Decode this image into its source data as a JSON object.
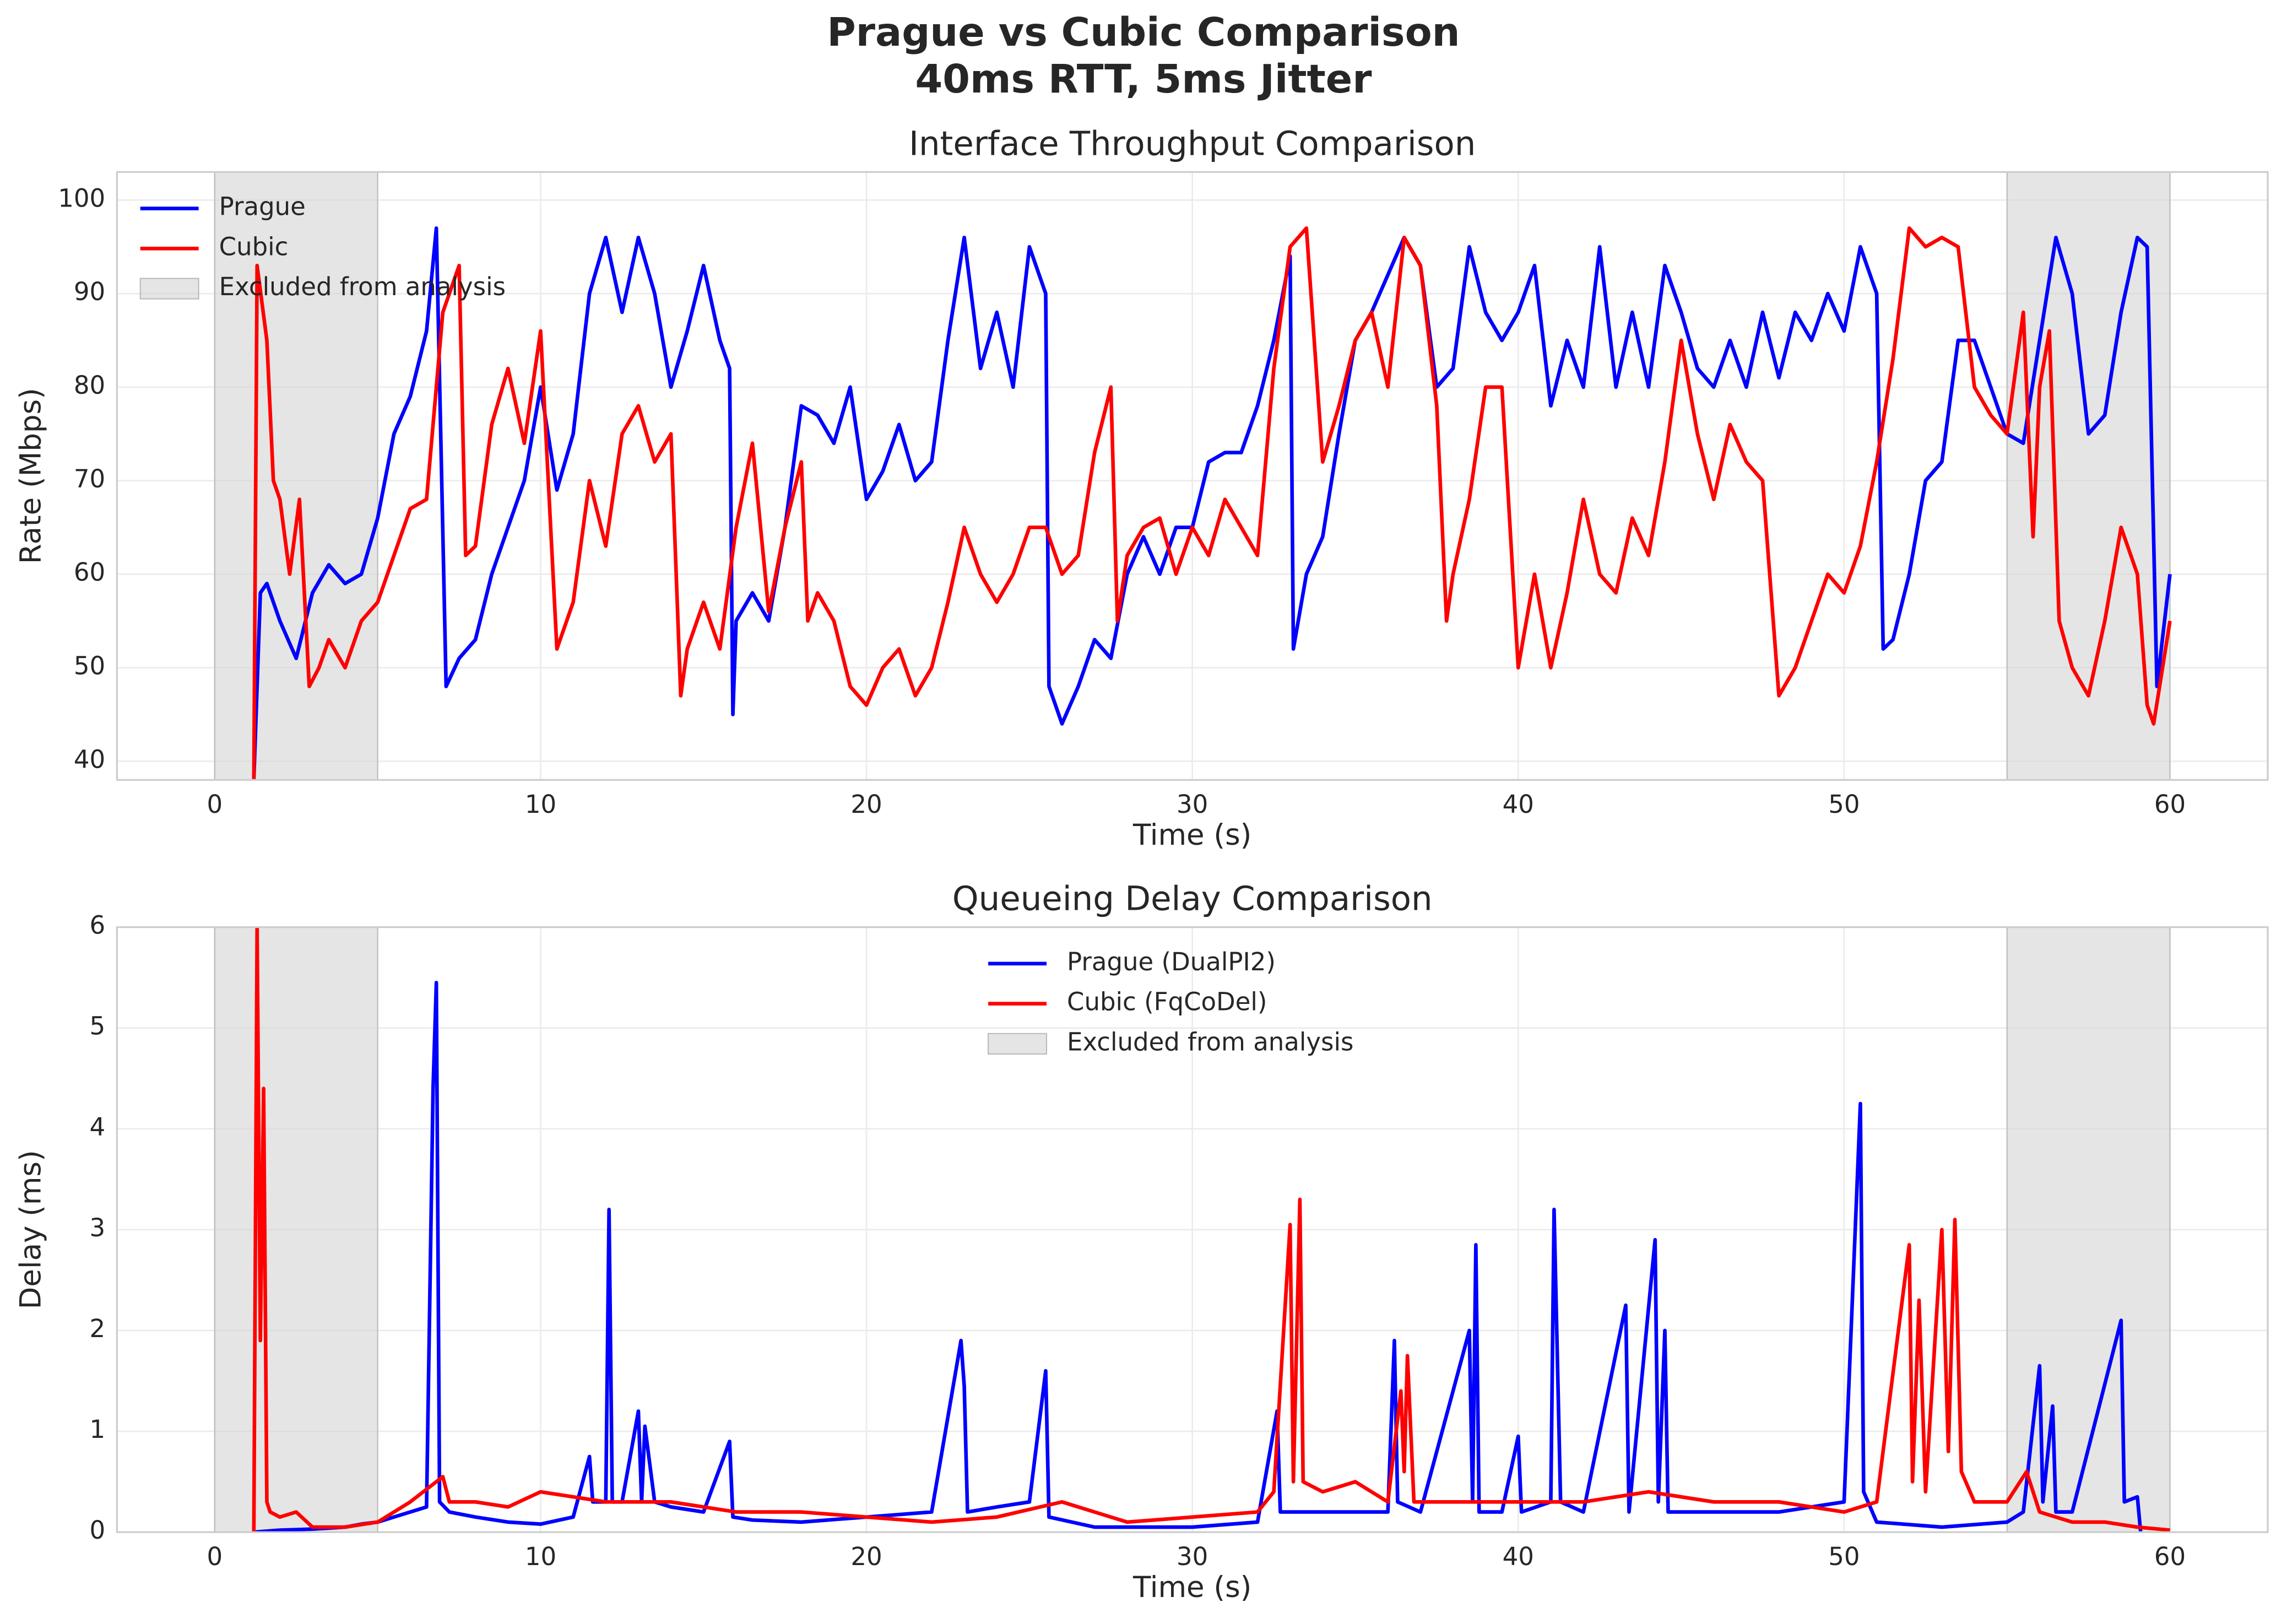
{
  "title": "Prague vs Cubic Comparison",
  "subtitle": "40ms RTT, 5ms Jitter",
  "chart_data": [
    {
      "type": "line",
      "title": "Interface Throughput Comparison",
      "x_label": "Time (s)",
      "y_label": "Rate (Mbps)",
      "xlim": [
        -3,
        63
      ],
      "ylim": [
        38,
        103
      ],
      "xticks": [
        0,
        10,
        20,
        30,
        40,
        50,
        60
      ],
      "yticks": [
        40,
        50,
        60,
        70,
        80,
        90,
        100
      ],
      "grid": true,
      "legend": "upper left",
      "shaded": {
        "name": "Excluded from analysis",
        "color": "#d3d3d3",
        "ranges": [
          [
            0,
            5
          ],
          [
            55,
            60
          ]
        ]
      },
      "series": [
        {
          "name": "Prague",
          "color": "#0000ff",
          "x": [
            1.2,
            1.4,
            1.6,
            2,
            2.5,
            3,
            3.5,
            4,
            4.5,
            5,
            5.5,
            6,
            6.5,
            6.8,
            7.1,
            7.5,
            8,
            8.5,
            9,
            9.5,
            10,
            10.5,
            11,
            11.5,
            12,
            12.5,
            13,
            13.5,
            14,
            14.5,
            15,
            15.5,
            15.8,
            15.9,
            16,
            16.5,
            17,
            17.5,
            18,
            18.5,
            19,
            19.5,
            20,
            20.5,
            21,
            21.5,
            22,
            22.5,
            23,
            23.5,
            24,
            24.5,
            25,
            25.5,
            25.6,
            26,
            26.5,
            27,
            27.5,
            28,
            28.5,
            29,
            29.5,
            30,
            30.5,
            31,
            31.5,
            32,
            32.5,
            33,
            33.1,
            33.5,
            34,
            34.5,
            35,
            35.5,
            36,
            36.5,
            37,
            37.5,
            38,
            38.5,
            39,
            39.5,
            40,
            40.5,
            41,
            41.5,
            42,
            42.5,
            43,
            43.5,
            44,
            44.5,
            45,
            45.5,
            46,
            46.5,
            47,
            47.5,
            48,
            48.5,
            49,
            49.5,
            50,
            50.5,
            51,
            51.2,
            51.5,
            52,
            52.5,
            53,
            53.5,
            54,
            54.5,
            55,
            55.5,
            56,
            56.5,
            57,
            57.5,
            58,
            58.5,
            59,
            59.3,
            59.6,
            60
          ],
          "values": [
            38,
            58,
            59,
            55,
            51,
            58,
            61,
            59,
            60,
            66,
            75,
            79,
            86,
            97,
            48,
            51,
            53,
            60,
            65,
            70,
            80,
            69,
            75,
            90,
            96,
            88,
            96,
            90,
            80,
            86,
            93,
            85,
            82,
            45,
            55,
            58,
            55,
            65,
            78,
            77,
            74,
            80,
            68,
            71,
            76,
            70,
            72,
            85,
            96,
            82,
            88,
            80,
            95,
            90,
            48,
            44,
            48,
            53,
            51,
            60,
            64,
            60,
            65,
            65,
            72,
            73,
            73,
            78,
            85,
            94,
            52,
            60,
            64,
            75,
            85,
            88,
            92,
            96,
            93,
            80,
            82,
            95,
            88,
            85,
            88,
            93,
            78,
            85,
            80,
            95,
            80,
            88,
            80,
            93,
            88,
            82,
            80,
            85,
            80,
            88,
            81,
            88,
            85,
            90,
            86,
            95,
            90,
            52,
            53,
            60,
            70,
            72,
            85,
            85,
            80,
            75,
            74,
            85,
            96,
            90,
            75,
            77,
            88,
            96,
            95,
            48,
            60
          ]
        },
        {
          "name": "Cubic",
          "color": "#ff0000",
          "x": [
            1.2,
            1.3,
            1.6,
            1.8,
            2,
            2.3,
            2.6,
            2.9,
            3.2,
            3.5,
            4,
            4.5,
            5,
            5.5,
            6,
            6.5,
            7,
            7.5,
            7.7,
            8,
            8.5,
            9,
            9.5,
            10,
            10.5,
            11,
            11.5,
            12,
            12.5,
            13,
            13.5,
            14,
            14.3,
            14.5,
            15,
            15.5,
            16,
            16.5,
            17,
            17.5,
            18,
            18.2,
            18.5,
            19,
            19.5,
            20,
            20.5,
            21,
            21.5,
            22,
            22.5,
            23,
            23.5,
            24,
            24.5,
            25,
            25.5,
            26,
            26.5,
            27,
            27.5,
            27.7,
            28,
            28.5,
            29,
            29.5,
            30,
            30.5,
            31,
            31.5,
            32,
            32.5,
            33,
            33.5,
            34,
            34.5,
            35,
            35.5,
            36,
            36.5,
            37,
            37.5,
            37.8,
            38,
            38.5,
            39,
            39.5,
            40,
            40.5,
            41,
            41.5,
            42,
            42.5,
            43,
            43.5,
            44,
            44.5,
            45,
            45.5,
            46,
            46.5,
            47,
            47.5,
            48,
            48.5,
            49,
            49.5,
            50,
            50.5,
            51,
            51.5,
            52,
            52.5,
            53,
            53.5,
            54,
            54.5,
            55,
            55.5,
            55.8,
            56,
            56.3,
            56.6,
            57,
            57.5,
            58,
            58.5,
            59,
            59.3,
            59.5,
            60
          ],
          "values": [
            38,
            93,
            85,
            70,
            68,
            60,
            68,
            48,
            50,
            53,
            50,
            55,
            57,
            62,
            67,
            68,
            88,
            93,
            62,
            63,
            76,
            82,
            74,
            86,
            52,
            57,
            70,
            63,
            75,
            78,
            72,
            75,
            47,
            52,
            57,
            52,
            65,
            74,
            56,
            65,
            72,
            55,
            58,
            55,
            48,
            46,
            50,
            52,
            47,
            50,
            57,
            65,
            60,
            57,
            60,
            65,
            65,
            60,
            62,
            73,
            80,
            55,
            62,
            65,
            66,
            60,
            65,
            62,
            68,
            65,
            62,
            82,
            95,
            97,
            72,
            78,
            85,
            88,
            80,
            96,
            93,
            78,
            55,
            60,
            68,
            80,
            80,
            50,
            60,
            50,
            58,
            68,
            60,
            58,
            66,
            62,
            72,
            85,
            75,
            68,
            76,
            72,
            70,
            47,
            50,
            55,
            60,
            58,
            63,
            72,
            83,
            97,
            95,
            96,
            95,
            80,
            77,
            75,
            88,
            64,
            80,
            86,
            55,
            50,
            47,
            55,
            65,
            60,
            46,
            44,
            55
          ]
        }
      ]
    },
    {
      "type": "line",
      "title": "Queueing Delay Comparison",
      "x_label": "Time (s)",
      "y_label": "Delay (ms)",
      "xlim": [
        -3,
        63
      ],
      "ylim": [
        0,
        6
      ],
      "xticks": [
        0,
        10,
        20,
        30,
        40,
        50,
        60
      ],
      "yticks": [
        0,
        1,
        2,
        3,
        4,
        5,
        6
      ],
      "grid": true,
      "legend": "upper center",
      "shaded": {
        "name": "Excluded from analysis",
        "color": "#d3d3d3",
        "ranges": [
          [
            0,
            5
          ],
          [
            55,
            60
          ]
        ]
      },
      "series": [
        {
          "name": "Prague (DualPI2)",
          "color": "#0000ff",
          "x": [
            1.2,
            2,
            3,
            4,
            4.5,
            5,
            5.5,
            6,
            6.5,
            6.7,
            6.8,
            6.9,
            7.2,
            8,
            9,
            10,
            11,
            11.5,
            11.6,
            12,
            12.1,
            12.2,
            12.5,
            13,
            13.1,
            13.2,
            13.5,
            14,
            15,
            15.8,
            15.9,
            16.5,
            18,
            20,
            22,
            22.9,
            23,
            23.1,
            24,
            25,
            25.5,
            25.6,
            27,
            30,
            32,
            32.6,
            32.7,
            34,
            36,
            36.2,
            36.3,
            37,
            38.5,
            38.6,
            38.7,
            38.8,
            39.5,
            40,
            40.1,
            41,
            41.1,
            41.3,
            42,
            43.3,
            43.4,
            44.2,
            44.3,
            44.5,
            44.6,
            46,
            48,
            50,
            50.5,
            50.6,
            51,
            53,
            55,
            55.5,
            56,
            56.1,
            56.4,
            56.5,
            57,
            58.5,
            58.6,
            59,
            59.1
          ],
          "values": [
            0,
            0.02,
            0.03,
            0.05,
            0.08,
            0.1,
            0.15,
            0.2,
            0.25,
            4.4,
            5.45,
            0.3,
            0.2,
            0.15,
            0.1,
            0.08,
            0.15,
            0.75,
            0.3,
            0.3,
            3.2,
            0.3,
            0.3,
            1.2,
            0.3,
            1.05,
            0.3,
            0.25,
            0.2,
            0.9,
            0.15,
            0.12,
            0.1,
            0.15,
            0.2,
            1.9,
            1.45,
            0.2,
            0.25,
            0.3,
            1.6,
            0.15,
            0.05,
            0.05,
            0.1,
            1.2,
            0.2,
            0.2,
            0.2,
            1.9,
            0.3,
            0.2,
            2.0,
            0.3,
            2.85,
            0.2,
            0.2,
            0.95,
            0.2,
            0.3,
            3.2,
            0.3,
            0.2,
            2.25,
            0.2,
            2.9,
            0.3,
            2.0,
            0.2,
            0.2,
            0.2,
            0.3,
            4.25,
            0.4,
            0.1,
            0.05,
            0.1,
            0.2,
            1.65,
            0.3,
            1.25,
            0.2,
            0.2,
            2.1,
            0.3,
            0.35,
            0
          ]
        },
        {
          "name": "Cubic (FqCoDel)",
          "color": "#ff0000",
          "x": [
            1.2,
            1.3,
            1.4,
            1.5,
            1.6,
            1.7,
            2,
            2.5,
            3,
            4,
            5,
            6,
            7,
            7.2,
            8,
            9,
            10,
            12,
            14,
            16,
            18,
            20,
            22,
            24,
            26,
            27,
            28,
            30,
            32,
            32.5,
            33,
            33.1,
            33.3,
            33.4,
            34,
            35,
            36,
            36.4,
            36.5,
            36.6,
            36.8,
            38,
            40,
            42,
            44,
            46,
            48,
            50,
            51,
            52,
            52.1,
            52.3,
            52.5,
            53,
            53.2,
            53.4,
            53.6,
            54,
            55,
            55.6,
            56,
            57,
            58,
            59,
            60
          ],
          "values": [
            0,
            6,
            1.9,
            4.4,
            0.3,
            0.2,
            0.15,
            0.2,
            0.05,
            0.05,
            0.1,
            0.3,
            0.55,
            0.3,
            0.3,
            0.25,
            0.4,
            0.3,
            0.3,
            0.2,
            0.2,
            0.15,
            0.1,
            0.15,
            0.3,
            0.2,
            0.1,
            0.15,
            0.2,
            0.4,
            3.05,
            0.5,
            3.3,
            0.5,
            0.4,
            0.5,
            0.3,
            1.4,
            0.6,
            1.75,
            0.3,
            0.3,
            0.3,
            0.3,
            0.4,
            0.3,
            0.3,
            0.2,
            0.3,
            2.85,
            0.5,
            2.3,
            0.4,
            3.0,
            0.8,
            3.1,
            0.6,
            0.3,
            0.3,
            0.6,
            0.2,
            0.1,
            0.1,
            0.05,
            0.02
          ]
        }
      ]
    }
  ]
}
